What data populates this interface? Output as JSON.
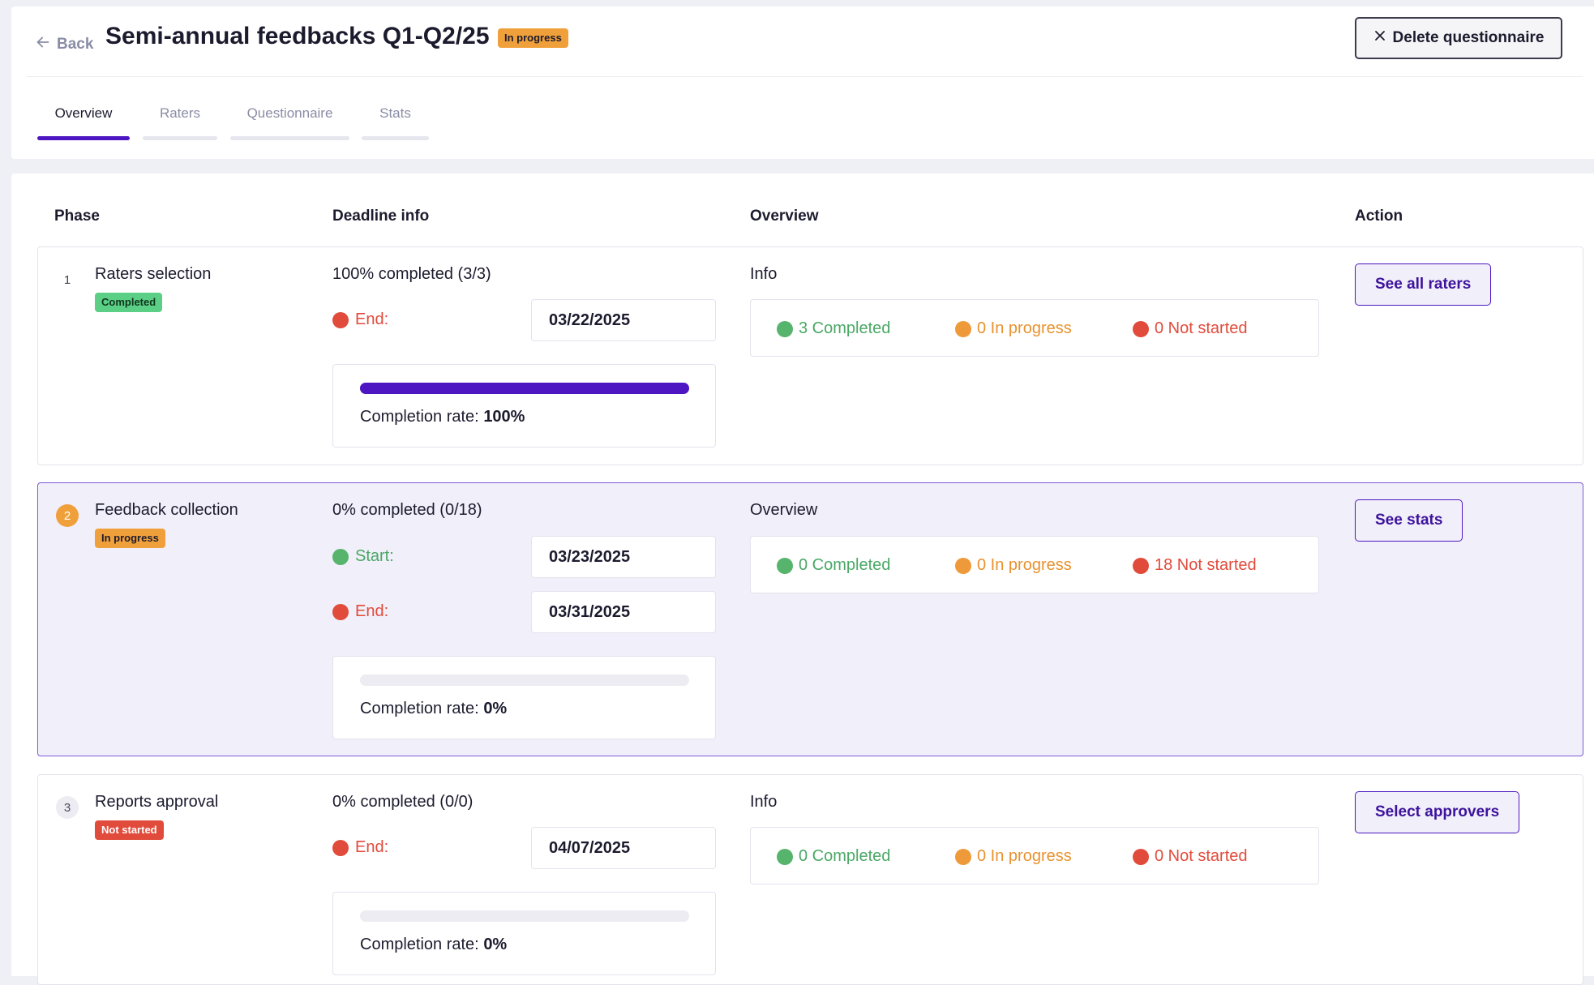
{
  "header": {
    "back_label": "Back",
    "title": "Semi-annual feedbacks Q1-Q2/25",
    "status_badge": "In progress",
    "delete_label": "Delete questionnaire"
  },
  "tabs": [
    {
      "label": "Overview",
      "active": true
    },
    {
      "label": "Raters",
      "active": false
    },
    {
      "label": "Questionnaire",
      "active": false
    },
    {
      "label": "Stats",
      "active": false
    }
  ],
  "columns": {
    "phase": "Phase",
    "deadline": "Deadline info",
    "overview": "Overview",
    "action": "Action"
  },
  "phases": [
    {
      "number": "1",
      "name": "Raters selection",
      "status": "Completed",
      "completed_text": "100% completed (3/3)",
      "end_label": "End:",
      "end_date": "03/22/2025",
      "completion_label": "Completion rate:",
      "completion_rate": "100%",
      "completion_fraction": 1.0,
      "overview_title": "Info",
      "completed": "3 Completed",
      "in_progress": "0 In progress",
      "not_started": "0 Not started",
      "action_label": "See all raters"
    },
    {
      "number": "2",
      "name": "Feedback collection",
      "status": "In progress",
      "completed_text": "0% completed (0/18)",
      "start_label": "Start:",
      "start_date": "03/23/2025",
      "end_label": "End:",
      "end_date": "03/31/2025",
      "completion_label": "Completion rate:",
      "completion_rate": "0%",
      "completion_fraction": 0.0,
      "overview_title": "Overview",
      "completed": "0 Completed",
      "in_progress": "0 In progress",
      "not_started": "18 Not started",
      "action_label": "See stats"
    },
    {
      "number": "3",
      "name": "Reports approval",
      "status": "Not started",
      "completed_text": "0% completed (0/0)",
      "end_label": "End:",
      "end_date": "04/07/2025",
      "completion_label": "Completion rate:",
      "completion_rate": "0%",
      "completion_fraction": 0.0,
      "overview_title": "Info",
      "completed": "0 Completed",
      "in_progress": "0 In progress",
      "not_started": "0 Not started",
      "action_label": "Select approvers"
    }
  ],
  "colors": {
    "accent": "#4d16c2",
    "status_green": "#4aa866",
    "status_orange": "#e8922e",
    "status_red": "#e14b3b"
  }
}
